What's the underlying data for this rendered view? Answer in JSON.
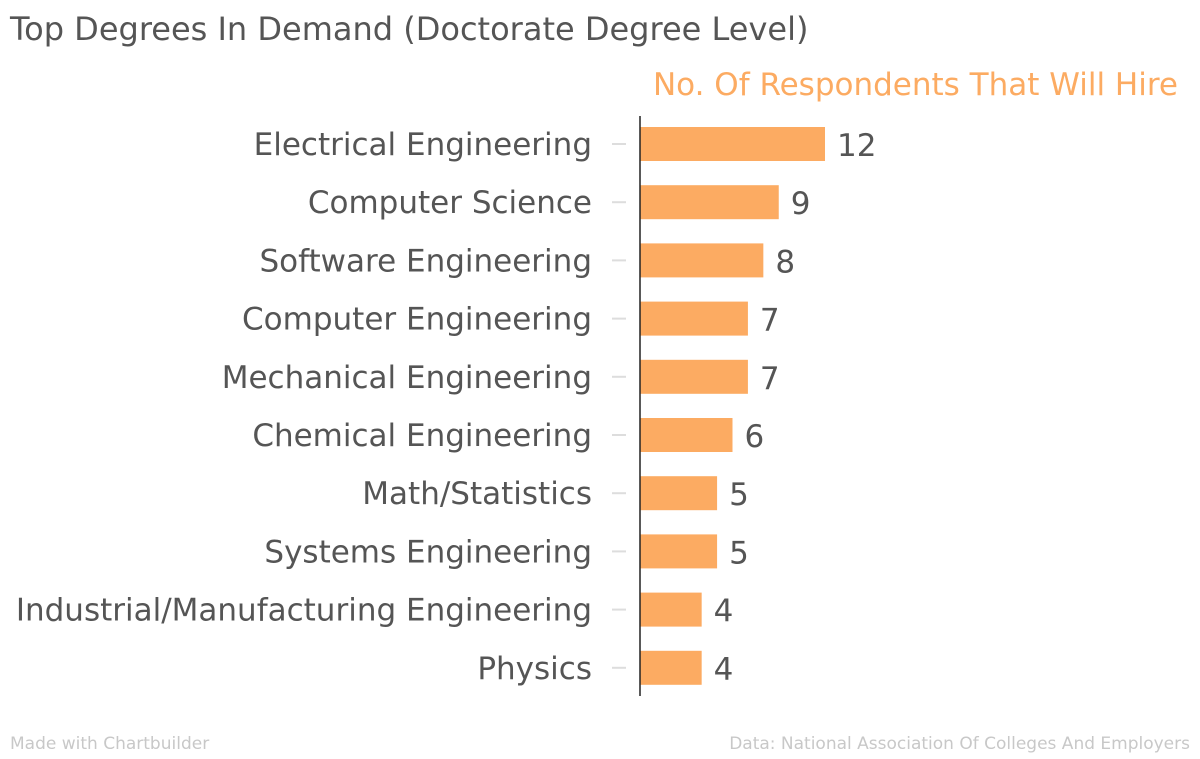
{
  "title": "Top Degrees In Demand (Doctorate Degree Level)",
  "footer": {
    "made_with": "Made with Chartbuilder",
    "source": "Data: National Association Of Colleges And Employers"
  },
  "colors": {
    "bar": "#fcab62",
    "series_label": "#fcab62",
    "category_text": "#555555",
    "value_text": "#555555",
    "axis": "#222222",
    "tick": "#dddddd"
  },
  "chart_data": {
    "type": "bar",
    "orientation": "horizontal",
    "title": "Top Degrees In Demand (Doctorate Degree Level)",
    "categories": [
      "Electrical Engineering",
      "Computer Science",
      "Software Engineering",
      "Computer Engineering",
      "Mechanical Engineering",
      "Chemical Engineering",
      "Math/Statistics",
      "Systems Engineering",
      "Industrial/Manufacturing Engineering",
      "Physics"
    ],
    "series": [
      {
        "name": "No. Of Respondents That Will Hire",
        "values": [
          12,
          9,
          8,
          7,
          7,
          6,
          5,
          5,
          4,
          4
        ]
      }
    ],
    "xlim": [
      0,
      12
    ],
    "grid": false,
    "legend": "top-right"
  }
}
